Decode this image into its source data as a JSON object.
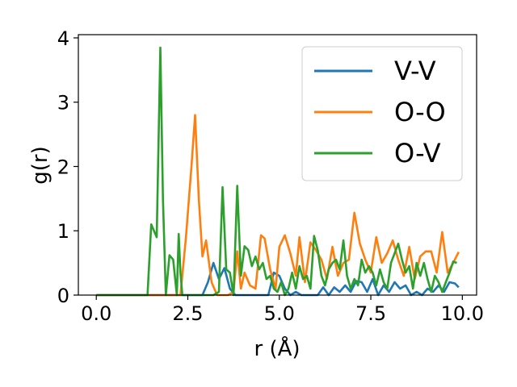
{
  "chart_data": {
    "type": "line",
    "title": "",
    "xlabel": "r (Å)",
    "ylabel": "g(r)",
    "xlim": [
      -0.49,
      10.39
    ],
    "ylim": [
      0,
      4.05
    ],
    "xticks": [
      0.0,
      2.5,
      5.0,
      7.5,
      10.0
    ],
    "xtick_labels": [
      "0.0",
      "2.5",
      "5.0",
      "7.5",
      "10.0"
    ],
    "yticks": [
      0,
      1,
      2,
      3,
      4
    ],
    "ytick_labels": [
      "0",
      "1",
      "2",
      "3",
      "4"
    ],
    "grid": false,
    "legend_position": "top-right",
    "series": [
      {
        "name": "V-V",
        "color": "#1f77b4",
        "x": [
          0.0,
          0.5,
          1.0,
          1.5,
          2.0,
          2.5,
          2.9,
          3.05,
          3.2,
          3.35,
          3.5,
          3.65,
          3.8,
          3.95,
          4.1,
          4.25,
          4.4,
          4.55,
          4.7,
          4.85,
          5.0,
          5.15,
          5.3,
          5.45,
          5.6,
          5.75,
          5.9,
          6.05,
          6.2,
          6.35,
          6.5,
          6.65,
          6.8,
          6.95,
          7.1,
          7.25,
          7.4,
          7.55,
          7.7,
          7.85,
          8.0,
          8.15,
          8.3,
          8.45,
          8.6,
          8.75,
          8.9,
          9.05,
          9.2,
          9.35,
          9.5,
          9.65,
          9.8,
          9.9
        ],
        "y": [
          0,
          0,
          0,
          0,
          0,
          0,
          0,
          0.2,
          0.5,
          0.25,
          0.42,
          0.1,
          0,
          0,
          0,
          0,
          0,
          0,
          0,
          0.35,
          0.3,
          0.1,
          0,
          0.05,
          0,
          0,
          0,
          0,
          0.12,
          0,
          0.12,
          0.05,
          0.15,
          0.05,
          0.22,
          0.2,
          0.05,
          0.25,
          0,
          0.15,
          0.05,
          0.2,
          0.1,
          0.15,
          0,
          0.05,
          0,
          0.1,
          0.05,
          0.15,
          0.05,
          0.2,
          0.18,
          0.12
        ]
      },
      {
        "name": "O-O",
        "color": "#ff7f0e",
        "x": [
          0.0,
          0.5,
          1.0,
          1.5,
          2.0,
          2.3,
          2.45,
          2.6,
          2.7,
          2.8,
          2.9,
          3.0,
          3.15,
          3.3,
          3.45,
          3.6,
          3.75,
          3.85,
          3.95,
          4.05,
          4.2,
          4.35,
          4.5,
          4.6,
          4.75,
          4.9,
          5.0,
          5.15,
          5.3,
          5.45,
          5.55,
          5.7,
          5.85,
          6.0,
          6.15,
          6.3,
          6.45,
          6.6,
          6.75,
          6.9,
          7.05,
          7.2,
          7.35,
          7.5,
          7.65,
          7.8,
          7.95,
          8.1,
          8.25,
          8.4,
          8.55,
          8.7,
          8.85,
          9.0,
          9.15,
          9.3,
          9.45,
          9.6,
          9.75,
          9.9
        ],
        "y": [
          0,
          0,
          0,
          0,
          0,
          0,
          0.9,
          2.0,
          2.8,
          1.5,
          0.6,
          0.85,
          0.2,
          0,
          0,
          0,
          0.05,
          0.68,
          0.1,
          0.35,
          0.15,
          0.1,
          0.93,
          0.88,
          0.4,
          0.1,
          0.75,
          0.93,
          0.65,
          0.3,
          0.9,
          0.2,
          0.82,
          0.7,
          0.55,
          0.25,
          0.75,
          0.3,
          0.5,
          0.55,
          1.28,
          0.8,
          0.55,
          0.35,
          0.9,
          0.5,
          0.65,
          0.85,
          0.55,
          0.3,
          0.75,
          0.25,
          0.6,
          0.68,
          0.68,
          0.35,
          0.98,
          0.35,
          0.5,
          0.67
        ]
      },
      {
        "name": "O-V",
        "color": "#2ca02c",
        "x": [
          0.0,
          0.5,
          1.0,
          1.4,
          1.5,
          1.65,
          1.75,
          1.82,
          1.9,
          2.0,
          2.1,
          2.2,
          2.25,
          2.3,
          2.35,
          2.45,
          2.6,
          2.75,
          2.9,
          3.05,
          3.2,
          3.35,
          3.45,
          3.55,
          3.65,
          3.75,
          3.85,
          3.95,
          4.05,
          4.15,
          4.25,
          4.35,
          4.45,
          4.55,
          4.65,
          4.75,
          4.85,
          4.95,
          5.05,
          5.15,
          5.25,
          5.35,
          5.45,
          5.55,
          5.65,
          5.75,
          5.85,
          5.95,
          6.05,
          6.15,
          6.25,
          6.35,
          6.45,
          6.55,
          6.65,
          6.75,
          6.85,
          6.95,
          7.05,
          7.15,
          7.25,
          7.35,
          7.45,
          7.55,
          7.65,
          7.75,
          7.85,
          7.95,
          8.05,
          8.15,
          8.25,
          8.35,
          8.45,
          8.55,
          8.65,
          8.75,
          8.85,
          8.95,
          9.05,
          9.15,
          9.25,
          9.35,
          9.45,
          9.55,
          9.65,
          9.75,
          9.85
        ],
        "y": [
          0,
          0,
          0,
          0,
          1.1,
          0.9,
          3.85,
          1.5,
          0,
          0.62,
          0.55,
          0,
          0.95,
          0.35,
          0,
          0,
          0,
          0,
          0,
          0,
          0,
          0.05,
          1.68,
          0.4,
          0.35,
          0,
          1.7,
          0.3,
          0.76,
          0.7,
          0.45,
          0.6,
          0.4,
          0.5,
          0.25,
          0.3,
          0.1,
          0.05,
          0.2,
          0,
          0.1,
          0.35,
          0.1,
          0.45,
          0.25,
          0.3,
          0.1,
          0.92,
          0.7,
          0.3,
          0.15,
          0.4,
          0.5,
          0.55,
          0.4,
          0.85,
          0.3,
          0.1,
          0.25,
          0.15,
          0.55,
          0.35,
          0.45,
          0.35,
          0.15,
          0.4,
          0.2,
          0.1,
          0.5,
          0.65,
          0.8,
          0.55,
          0.35,
          0.45,
          0.1,
          0.5,
          0.3,
          0.5,
          0.25,
          0.05,
          0.3,
          0.2,
          0.05,
          0.2,
          0.35,
          0.52,
          0.5
        ]
      }
    ]
  }
}
